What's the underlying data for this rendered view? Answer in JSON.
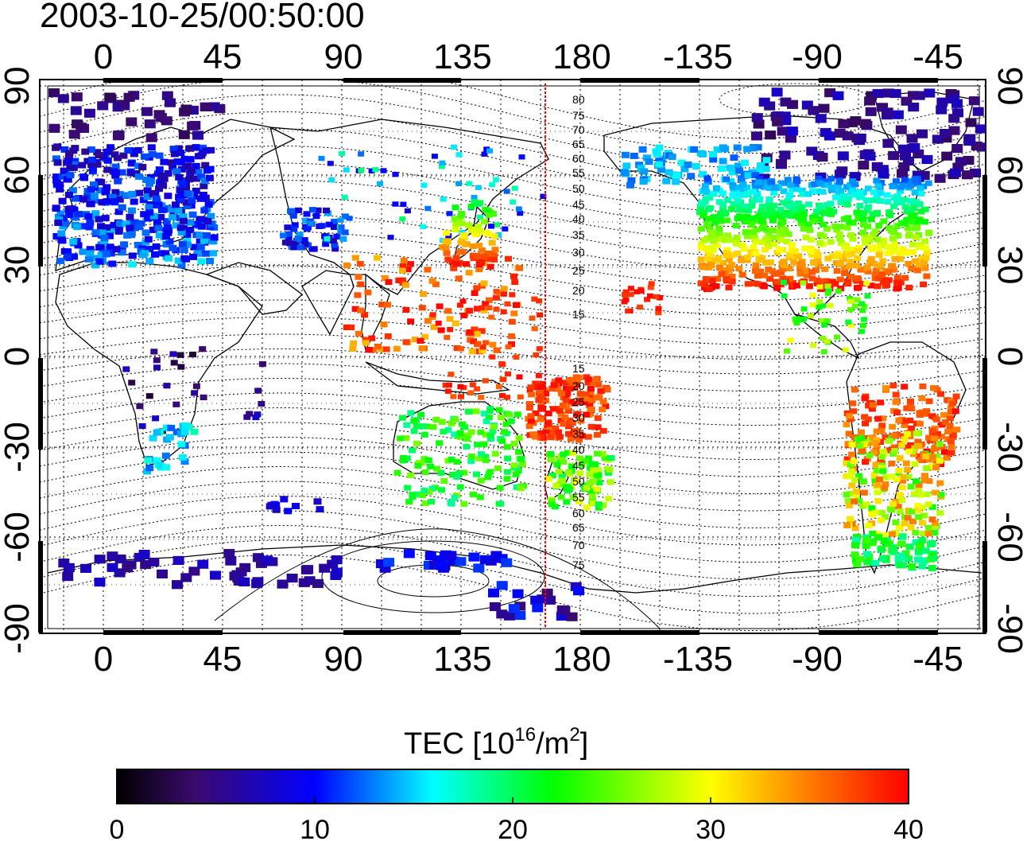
{
  "timestamp": "2003-10-25/00:50:00",
  "map": {
    "lon_labels_top": [
      "0",
      "45",
      "90",
      "135",
      "180",
      "-135",
      "-90",
      "-45"
    ],
    "lon_labels_bottom": [
      "0",
      "45",
      "90",
      "135",
      "180",
      "-135",
      "-90",
      "-45"
    ],
    "lat_labels_left": [
      "90",
      "60",
      "30",
      "0",
      "-30",
      "-60",
      "-90"
    ],
    "lat_labels_right": [
      "90",
      "60",
      "30",
      "0",
      "-30",
      "-60",
      "-90"
    ],
    "contour_labels_north": [
      "80",
      "75",
      "70",
      "65",
      "60",
      "55",
      "50",
      "45",
      "40",
      "35",
      "30",
      "25",
      "20",
      "15"
    ],
    "contour_labels_south": [
      "15",
      "20",
      "25",
      "30",
      "35",
      "40",
      "45",
      "50",
      "55",
      "60",
      "65",
      "70",
      "75"
    ],
    "terminator_color": "#ff0000"
  },
  "colorbar": {
    "title_prefix": "TEC  [10",
    "title_exp1": "16",
    "title_mid": "/m",
    "title_exp2": "2",
    "title_suffix": "]",
    "tick_labels": [
      "0",
      "10",
      "20",
      "30",
      "40"
    ],
    "gradient_stops": [
      "#000000",
      "#3b0a6e",
      "#0000ff",
      "#00ffff",
      "#00ff00",
      "#ffff00",
      "#ff8000",
      "#ff0000"
    ]
  }
}
